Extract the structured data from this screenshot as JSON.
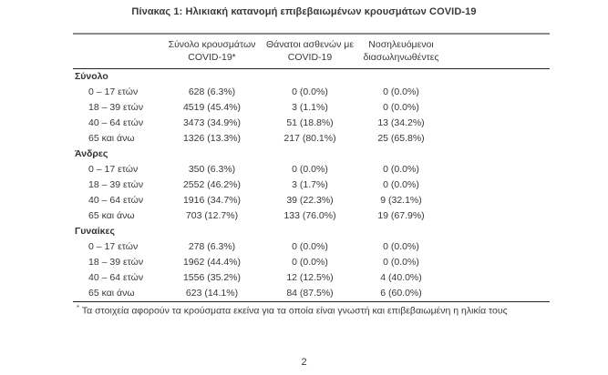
{
  "title": "Πίνακας 1: Ηλικιακή κατανομή επιβεβαιωμένων κρουσμάτων COVID-19",
  "table": {
    "columns": [
      {
        "line1": "Σύνολο κρουσμάτων",
        "line2": "COVID-19*"
      },
      {
        "line1": "Θάνατοι ασθενών με",
        "line2": "COVID-19"
      },
      {
        "line1": "Νοσηλευόμενοι",
        "line2": "διασωληνωθέντες"
      }
    ],
    "sections": [
      {
        "label": "Σύνολο",
        "rows": [
          {
            "label": "0 – 17 ετών",
            "cases": "628 (6.3%)",
            "deaths": "0 (0.0%)",
            "intubated": "0 (0.0%)"
          },
          {
            "label": "18 – 39 ετών",
            "cases": "4519 (45.4%)",
            "deaths": "3 (1.1%)",
            "intubated": "0 (0.0%)"
          },
          {
            "label": "40 – 64 ετών",
            "cases": "3473 (34.9%)",
            "deaths": "51 (18.8%)",
            "intubated": "13 (34.2%)"
          },
          {
            "label": "65 και άνω",
            "cases": "1326 (13.3%)",
            "deaths": "217 (80.1%)",
            "intubated": "25 (65.8%)"
          }
        ]
      },
      {
        "label": "Άνδρες",
        "rows": [
          {
            "label": "0 – 17 ετών",
            "cases": "350 (6.3%)",
            "deaths": "0 (0.0%)",
            "intubated": "0 (0.0%)"
          },
          {
            "label": "18 – 39 ετών",
            "cases": "2552 (46.2%)",
            "deaths": "3 (1.7%)",
            "intubated": "0 (0.0%)"
          },
          {
            "label": "40 – 64 ετών",
            "cases": "1916 (34.7%)",
            "deaths": "39 (22.3%)",
            "intubated": "9 (32.1%)"
          },
          {
            "label": "65 και άνω",
            "cases": "703 (12.7%)",
            "deaths": "133 (76.0%)",
            "intubated": "19 (67.9%)"
          }
        ]
      },
      {
        "label": "Γυναίκες",
        "rows": [
          {
            "label": "0 – 17 ετών",
            "cases": "278 (6.3%)",
            "deaths": "0 (0.0%)",
            "intubated": "0 (0.0%)"
          },
          {
            "label": "18 – 39 ετών",
            "cases": "1962 (44.4%)",
            "deaths": "0 (0.0%)",
            "intubated": "0 (0.0%)"
          },
          {
            "label": "40 – 64 ετών",
            "cases": "1556 (35.2%)",
            "deaths": "12 (12.5%)",
            "intubated": "4 (40.0%)"
          },
          {
            "label": "65 και άνω",
            "cases": "623 (14.1%)",
            "deaths": "84 (87.5%)",
            "intubated": "6 (60.0%)"
          }
        ]
      }
    ]
  },
  "footnote": {
    "marker": "*",
    "text": "Τα στοιχεία αφορούν τα κρούσματα εκείνα για τα οποία είναι γνωστή και επιβεβαιωμένη η ηλικία τους"
  },
  "page_number": "2"
}
